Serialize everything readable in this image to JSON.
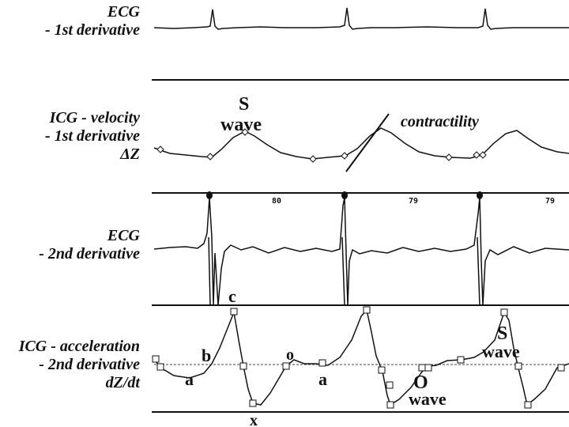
{
  "rows": [
    {
      "lines": [
        "ECG",
        "- 1st derivative"
      ]
    },
    {
      "lines": [
        "ICG - velocity",
        "- 1st derivative",
        "ΔZ"
      ]
    },
    {
      "lines": [
        "ECG",
        "- 2nd derivative"
      ]
    },
    {
      "lines": [
        "ICG - acceleration",
        "- 2nd derivative",
        "dZ/dt"
      ]
    }
  ],
  "annotations": {
    "s_wave_top_s": "S",
    "s_wave_top_wave": "wave",
    "contractility": "contractility",
    "heart_rates": [
      "80",
      "79",
      "79"
    ],
    "c": "c",
    "b": "b",
    "o_small": "o",
    "a_left": "a",
    "a_mid": "a",
    "x": "x",
    "o_wave_O": "O",
    "o_wave_wave": "wave",
    "s_wave_bottom_s": "S",
    "s_wave_bottom_wave": "wave"
  }
}
